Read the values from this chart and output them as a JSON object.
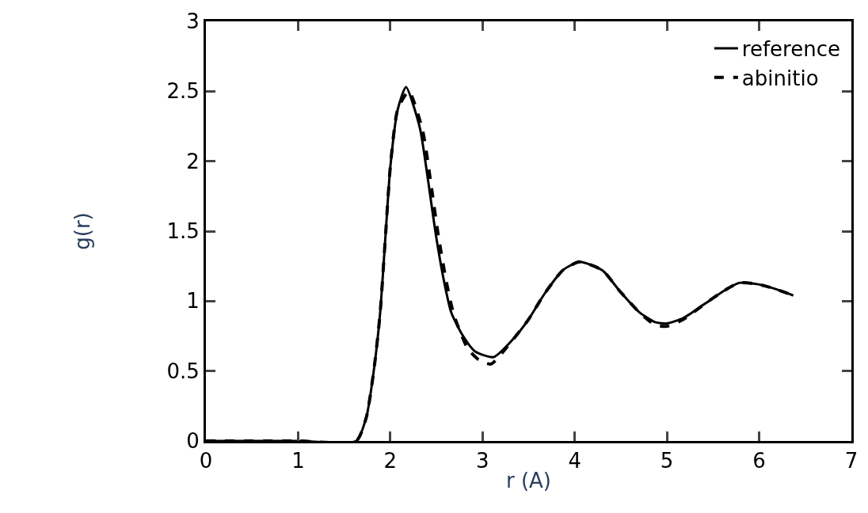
{
  "chart_data": {
    "type": "line",
    "xlabel": "r (A)",
    "ylabel": "g(r)",
    "xlim": [
      0,
      7
    ],
    "ylim": [
      0,
      3
    ],
    "xticks": [
      0,
      1,
      2,
      3,
      4,
      5,
      6,
      7
    ],
    "yticks": [
      0,
      0.5,
      1,
      1.5,
      2,
      2.5,
      3
    ],
    "grid": false,
    "legend": "top right",
    "marker": "none",
    "series": [
      {
        "name": "reference",
        "color": "#000000",
        "line_style": "solid",
        "x": [
          0,
          1.0,
          1.63,
          1.74,
          1.83,
          1.89,
          1.95,
          2.0,
          2.08,
          2.17,
          2.32,
          2.41,
          2.49,
          2.58,
          2.66,
          2.78,
          2.92,
          3.12,
          3.32,
          3.5,
          3.67,
          3.87,
          4.05,
          4.3,
          4.49,
          4.7,
          4.87,
          5.0,
          5.18,
          5.41,
          5.61,
          5.78,
          5.99,
          6.16,
          6.37
        ],
        "values": [
          0,
          0,
          0,
          0.17,
          0.55,
          0.92,
          1.49,
          1.96,
          2.37,
          2.53,
          2.24,
          1.86,
          1.49,
          1.15,
          0.92,
          0.76,
          0.64,
          0.6,
          0.72,
          0.87,
          1.05,
          1.22,
          1.28,
          1.22,
          1.07,
          0.92,
          0.85,
          0.84,
          0.88,
          0.98,
          1.07,
          1.13,
          1.12,
          1.09,
          1.04
        ]
      },
      {
        "name": "abinitio",
        "color": "#000000",
        "line_style": "dashed",
        "x": [
          0,
          1.0,
          1.63,
          1.74,
          1.83,
          1.89,
          1.95,
          2.0,
          2.08,
          2.2,
          2.35,
          2.44,
          2.52,
          2.61,
          2.69,
          2.84,
          2.96,
          3.09,
          3.3,
          3.5,
          3.67,
          3.87,
          4.05,
          4.3,
          4.49,
          4.7,
          4.87,
          5.0,
          5.18,
          5.41,
          5.61,
          5.78,
          5.99,
          6.16,
          6.37
        ],
        "values": [
          0,
          0,
          0,
          0.17,
          0.55,
          0.92,
          1.49,
          1.96,
          2.37,
          2.5,
          2.22,
          1.84,
          1.47,
          1.13,
          0.9,
          0.66,
          0.58,
          0.55,
          0.7,
          0.87,
          1.05,
          1.22,
          1.28,
          1.22,
          1.07,
          0.92,
          0.83,
          0.82,
          0.87,
          0.98,
          1.07,
          1.13,
          1.12,
          1.09,
          1.04
        ]
      }
    ]
  }
}
